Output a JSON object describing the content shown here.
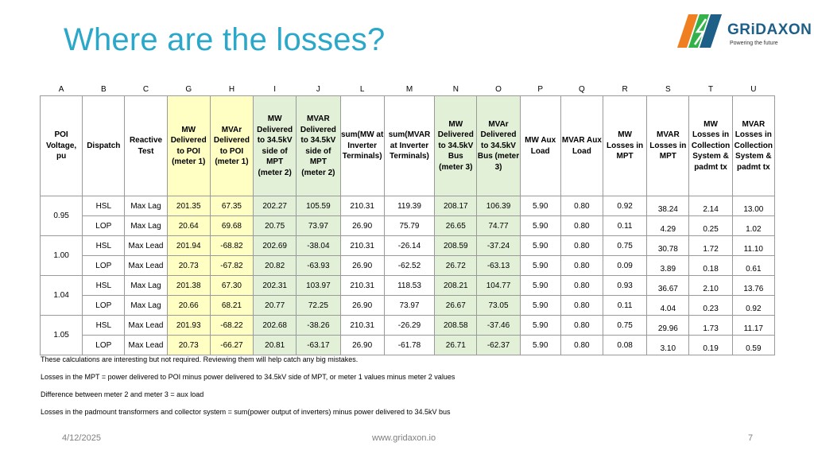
{
  "slide": {
    "title": "Where are the losses?",
    "logo_text": "GRiDAXON",
    "logo_tagline": "Powering the future",
    "brand_color": "#2ba7c9",
    "logo_colors": [
      "#f07f22",
      "#33b24a",
      "#1e5f88"
    ]
  },
  "table": {
    "column_letters": [
      "A",
      "B",
      "C",
      "G",
      "H",
      "I",
      "J",
      "L",
      "M",
      "N",
      "O",
      "P",
      "Q",
      "R",
      "S",
      "T",
      "U"
    ],
    "headers": [
      "POI Voltage, pu",
      "Dispatch",
      "Reactive Test",
      "MW Delivered to POI (meter 1)",
      "MVAr Delivered to POI (meter 1)",
      "MW Delivered to 34.5kV side of MPT (meter 2)",
      "MVAR Delivered to 34.5kV side of MPT (meter 2)",
      "sum(MW at Inverter Terminals)",
      "sum(MVAR at Inverter Terminals)",
      "MW Delivered to 34.5kV Bus (meter 3)",
      "MVAr Delivered to 34.5kV Bus (meter 3)",
      "MW Aux Load",
      "MVAR Aux Load",
      "MW Losses in MPT",
      "MVAR Losses in MPT",
      "MW Losses in Collection System & padmt tx",
      "MVAR Losses in Collection System & padmt tx"
    ],
    "groups": [
      {
        "voltage": "0.95",
        "rows": [
          {
            "dispatch": "HSL",
            "test": "Max Lag",
            "values": [
              "201.35",
              "67.35",
              "202.27",
              "105.59",
              "210.31",
              "119.39",
              "208.17",
              "106.39",
              "5.90",
              "0.80",
              "0.92",
              "38.24",
              "2.14",
              "13.00"
            ]
          },
          {
            "dispatch": "LOP",
            "test": "Max Lag",
            "values": [
              "20.64",
              "69.68",
              "20.75",
              "73.97",
              "26.90",
              "75.79",
              "26.65",
              "74.77",
              "5.90",
              "0.80",
              "0.11",
              "4.29",
              "0.25",
              "1.02"
            ]
          }
        ]
      },
      {
        "voltage": "1.00",
        "rows": [
          {
            "dispatch": "HSL",
            "test": "Max Lead",
            "values": [
              "201.94",
              "-68.82",
              "202.69",
              "-38.04",
              "210.31",
              "-26.14",
              "208.59",
              "-37.24",
              "5.90",
              "0.80",
              "0.75",
              "30.78",
              "1.72",
              "11.10"
            ]
          },
          {
            "dispatch": "LOP",
            "test": "Max Lead",
            "values": [
              "20.73",
              "-67.82",
              "20.82",
              "-63.93",
              "26.90",
              "-62.52",
              "26.72",
              "-63.13",
              "5.90",
              "0.80",
              "0.09",
              "3.89",
              "0.18",
              "0.61"
            ]
          }
        ]
      },
      {
        "voltage": "1.04",
        "rows": [
          {
            "dispatch": "HSL",
            "test": "Max Lag",
            "values": [
              "201.38",
              "67.30",
              "202.31",
              "103.97",
              "210.31",
              "118.53",
              "208.21",
              "104.77",
              "5.90",
              "0.80",
              "0.93",
              "36.67",
              "2.10",
              "13.76"
            ]
          },
          {
            "dispatch": "LOP",
            "test": "Max Lag",
            "values": [
              "20.66",
              "68.21",
              "20.77",
              "72.25",
              "26.90",
              "73.97",
              "26.67",
              "73.05",
              "5.90",
              "0.80",
              "0.11",
              "4.04",
              "0.23",
              "0.92"
            ]
          }
        ]
      },
      {
        "voltage": "1.05",
        "rows": [
          {
            "dispatch": "HSL",
            "test": "Max Lead",
            "values": [
              "201.93",
              "-68.22",
              "202.68",
              "-38.26",
              "210.31",
              "-26.29",
              "208.58",
              "-37.46",
              "5.90",
              "0.80",
              "0.75",
              "29.96",
              "1.73",
              "11.17"
            ]
          },
          {
            "dispatch": "LOP",
            "test": "Max Lead",
            "values": [
              "20.73",
              "-66.27",
              "20.81",
              "-63.17",
              "26.90",
              "-61.78",
              "26.71",
              "-62.37",
              "5.90",
              "0.80",
              "0.08",
              "3.10",
              "0.19",
              "0.59"
            ]
          }
        ]
      }
    ]
  },
  "notes": [
    "These calculations are interesting but not required.  Reviewing them will help catch any big mistakes.",
    "Losses in the MPT = power delivered to POI minus power delivered to 34.5kV side of MPT, or meter 1 values minus meter 2 values",
    "Difference between meter 2 and meter 3 = aux load",
    "Losses in the padmount transformers and collector system = sum(power output of inverters) minus power delivered to 34.5kV bus"
  ],
  "footer": {
    "date": "4/12/2025",
    "website": "www.gridaxon.io",
    "page_number": "7"
  }
}
